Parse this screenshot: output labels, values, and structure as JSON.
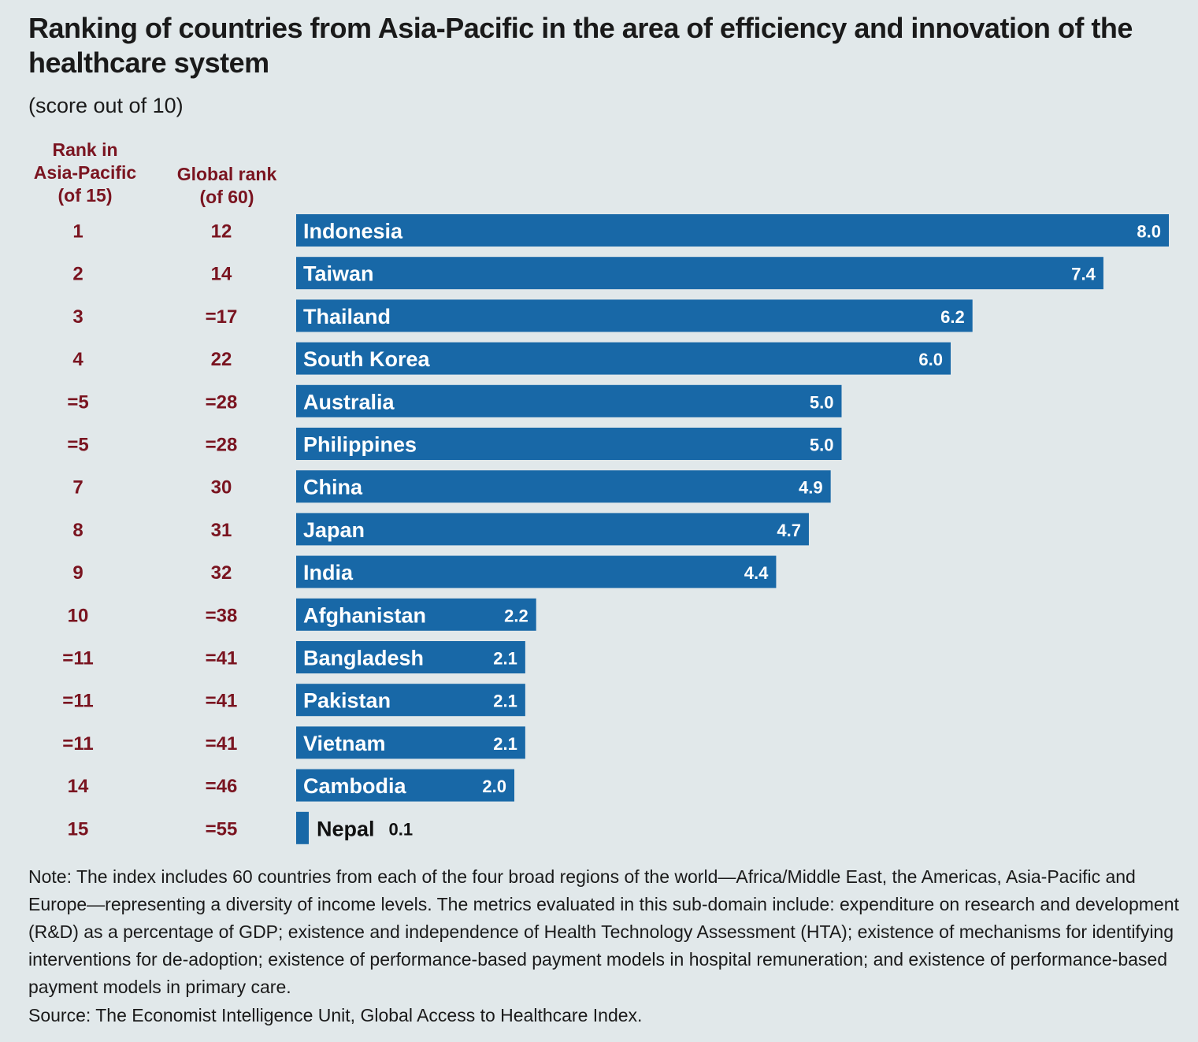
{
  "title": "Ranking of countries from Asia-Pacific in the area of efficiency and innovation of the healthcare system",
  "subtitle": "(score out of 10)",
  "columns": {
    "asia_rank_header": [
      "Rank in",
      "Asia-Pacific",
      "(of 15)"
    ],
    "global_rank_header": [
      "Global rank",
      "(of 60)"
    ]
  },
  "colors": {
    "bar": "#1868a7",
    "rank_text": "#7a1420",
    "background": "#e1e8ea"
  },
  "chart_data": {
    "type": "bar",
    "orientation": "horizontal",
    "xlim": [
      0,
      8
    ],
    "grid": false,
    "categories": [
      "Indonesia",
      "Taiwan",
      "Thailand",
      "South Korea",
      "Australia",
      "Philippines",
      "China",
      "Japan",
      "India",
      "Afghanistan",
      "Bangladesh",
      "Pakistan",
      "Vietnam",
      "Cambodia",
      "Nepal"
    ],
    "values": [
      8.0,
      7.4,
      6.2,
      6.0,
      5.0,
      5.0,
      4.9,
      4.7,
      4.4,
      2.2,
      2.1,
      2.1,
      2.1,
      2.0,
      0.1
    ],
    "value_labels": [
      "8.0",
      "7.4",
      "6.2",
      "6.0",
      "5.0",
      "5.0",
      "4.9",
      "4.7",
      "4.4",
      "2.2",
      "2.1",
      "2.1",
      "2.1",
      "2.0",
      "0.1"
    ],
    "asia_pacific_rank": [
      "1",
      "2",
      "3",
      "4",
      "=5",
      "=5",
      "7",
      "8",
      "9",
      "10",
      "=11",
      "=11",
      "=11",
      "14",
      "15"
    ],
    "global_rank": [
      "12",
      "14",
      "=17",
      "22",
      "=28",
      "=28",
      "30",
      "31",
      "32",
      "=38",
      "=41",
      "=41",
      "=41",
      "=46",
      "=55"
    ]
  },
  "note": "Note: The index includes 60 countries from each of the four broad regions of the world—Africa/Middle East, the Americas, Asia-Pacific and Europe—representing a diversity of income levels. The metrics evaluated in this sub-domain include: expenditure on research and development (R&D) as a percentage of GDP; existence and independence of Health Technology Assessment (HTA); existence of mechanisms for identifying interventions for de-adoption; existence of performance-based payment models in hospital remuneration; and existence of performance-based payment models in primary care.",
  "source": "Source: The Economist Intelligence Unit, Global Access to Healthcare Index."
}
